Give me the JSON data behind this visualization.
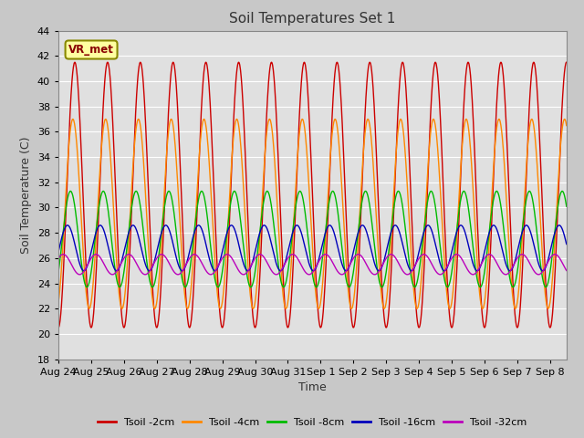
{
  "title": "Soil Temperatures Set 1",
  "xlabel": "Time",
  "ylabel": "Soil Temperature (C)",
  "ylim": [
    18,
    44
  ],
  "yticks": [
    18,
    20,
    22,
    24,
    26,
    28,
    30,
    32,
    34,
    36,
    38,
    40,
    42,
    44
  ],
  "num_days": 15.5,
  "xtick_labels": [
    "Aug 24",
    "Aug 25",
    "Aug 26",
    "Aug 27",
    "Aug 28",
    "Aug 29",
    "Aug 30",
    "Aug 31",
    "Sep 1",
    "Sep 2",
    "Sep 3",
    "Sep 4",
    "Sep 5",
    "Sep 6",
    "Sep 7",
    "Sep 8"
  ],
  "colors": {
    "Tsoil -2cm": "#cc0000",
    "Tsoil -4cm": "#ff8800",
    "Tsoil -8cm": "#00bb00",
    "Tsoil -16cm": "#0000bb",
    "Tsoil -32cm": "#bb00bb"
  },
  "legend_labels": [
    "Tsoil -2cm",
    "Tsoil -4cm",
    "Tsoil -8cm",
    "Tsoil -16cm",
    "Tsoil -32cm"
  ],
  "annotation_text": "VR_met",
  "fig_facecolor": "#c8c8c8",
  "axes_facecolor": "#e0e0e0",
  "grid_color": "#ffffff",
  "title_fontsize": 11,
  "label_fontsize": 9,
  "tick_fontsize": 8,
  "params": {
    "2": {
      "base": 31.0,
      "amp": 10.5,
      "phase": -1.5708
    },
    "4": {
      "base": 29.5,
      "amp": 7.5,
      "phase": -1.2
    },
    "8": {
      "base": 27.5,
      "amp": 3.8,
      "phase": -0.75
    },
    "16": {
      "base": 26.8,
      "amp": 1.8,
      "phase": -0.17
    },
    "32": {
      "base": 25.5,
      "amp": 0.8,
      "phase": 0.65
    }
  }
}
